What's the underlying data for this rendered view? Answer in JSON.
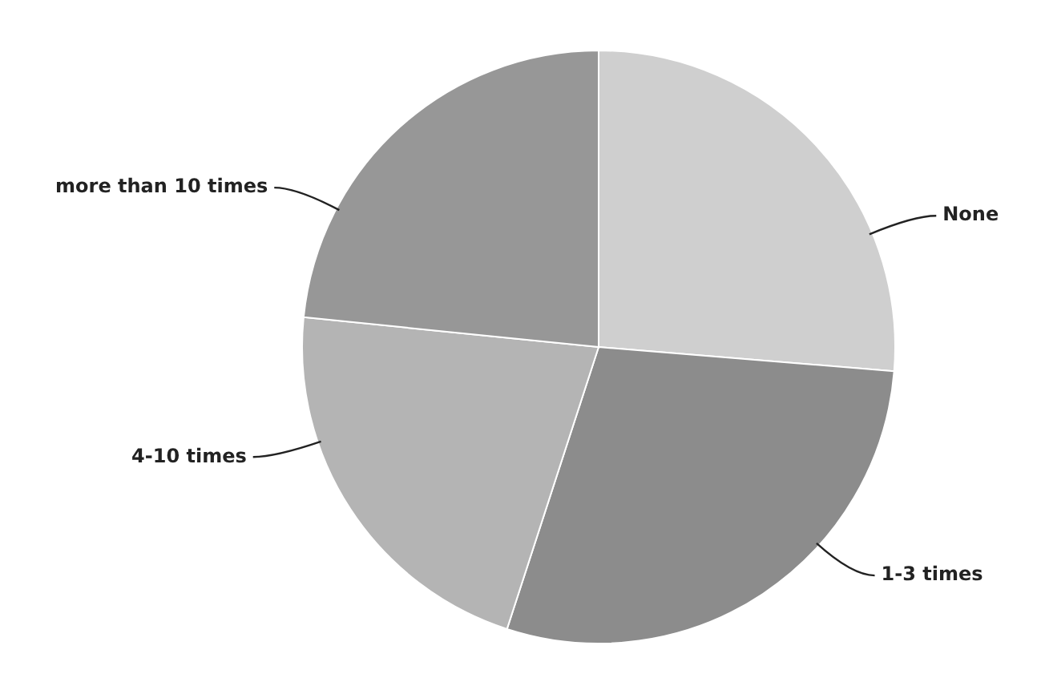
{
  "chart_data": {
    "type": "pie",
    "categories": [
      "None",
      "1-3 times",
      "4-10 times",
      "more than 10 times"
    ],
    "values": [
      26.3,
      28.7,
      21.6,
      23.4
    ],
    "colors": [
      "#cfcfcf",
      "#8c8c8c",
      "#b4b4b4",
      "#979797"
    ],
    "legend": false
  }
}
